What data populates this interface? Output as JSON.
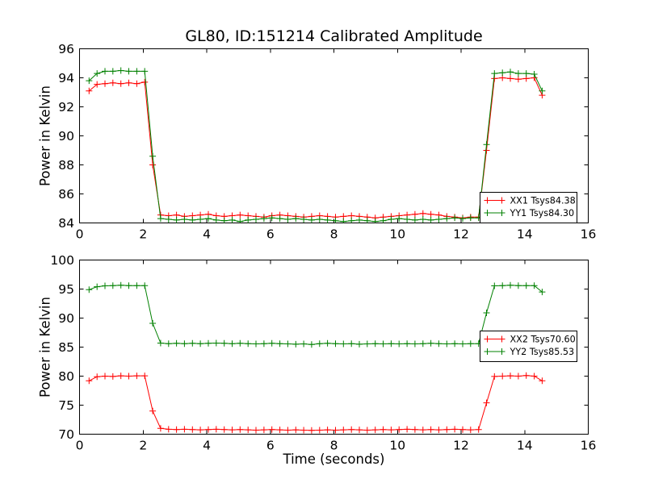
{
  "figure": {
    "title": "GL80, ID:151214 Calibrated Amplitude",
    "background_color": "#ffffff",
    "axis_color": "#000000"
  },
  "chart_data": [
    {
      "type": "line",
      "title": "GL80, ID:151214 Calibrated Amplitude",
      "xlabel": "",
      "ylabel": "Power in Kelvin",
      "xlim": [
        0,
        16
      ],
      "ylim": [
        84,
        96
      ],
      "xticks": [
        0,
        2,
        4,
        6,
        8,
        10,
        12,
        14,
        16
      ],
      "yticks": [
        84,
        86,
        88,
        90,
        92,
        94,
        96
      ],
      "grid": false,
      "legend_position": "lower right",
      "marker": "plus",
      "x": [
        0.3,
        0.55,
        0.8,
        1.05,
        1.3,
        1.55,
        1.8,
        2.05,
        2.3,
        2.55,
        2.8,
        3.05,
        3.3,
        3.55,
        3.8,
        4.05,
        4.3,
        4.55,
        4.8,
        5.05,
        5.3,
        5.55,
        5.8,
        6.05,
        6.3,
        6.55,
        6.8,
        7.05,
        7.3,
        7.55,
        7.8,
        8.05,
        8.3,
        8.55,
        8.8,
        9.05,
        9.3,
        9.55,
        9.8,
        10.05,
        10.3,
        10.55,
        10.8,
        11.05,
        11.3,
        11.55,
        11.8,
        12.05,
        12.3,
        12.55,
        12.8,
        13.05,
        13.3,
        13.55,
        13.8,
        14.05,
        14.3,
        14.55
      ],
      "series": [
        {
          "id": "xx1",
          "name": "XX1 Tsys84.38",
          "color": "#ff0000",
          "values": [
            93.1,
            93.55,
            93.6,
            93.65,
            93.6,
            93.65,
            93.6,
            93.7,
            88.0,
            84.55,
            84.5,
            84.55,
            84.45,
            84.5,
            84.55,
            84.6,
            84.5,
            84.45,
            84.5,
            84.55,
            84.5,
            84.45,
            84.4,
            84.5,
            84.55,
            84.5,
            84.45,
            84.4,
            84.45,
            84.5,
            84.45,
            84.4,
            84.45,
            84.5,
            84.45,
            84.4,
            84.35,
            84.4,
            84.45,
            84.5,
            84.55,
            84.6,
            84.65,
            84.6,
            84.55,
            84.45,
            84.4,
            84.35,
            84.4,
            84.4,
            89.0,
            93.95,
            94.0,
            93.95,
            93.9,
            93.95,
            94.0,
            92.8
          ]
        },
        {
          "id": "yy1",
          "name": "YY1 Tsys84.30",
          "color": "#008000",
          "values": [
            93.8,
            94.3,
            94.45,
            94.45,
            94.5,
            94.45,
            94.45,
            94.45,
            88.6,
            84.3,
            84.25,
            84.2,
            84.25,
            84.2,
            84.25,
            84.3,
            84.2,
            84.15,
            84.2,
            84.1,
            84.2,
            84.25,
            84.3,
            84.35,
            84.3,
            84.25,
            84.3,
            84.25,
            84.2,
            84.25,
            84.2,
            84.15,
            84.1,
            84.15,
            84.2,
            84.15,
            84.1,
            84.15,
            84.25,
            84.3,
            84.25,
            84.2,
            84.25,
            84.2,
            84.25,
            84.3,
            84.35,
            84.3,
            84.35,
            84.35,
            89.4,
            94.3,
            94.35,
            94.4,
            94.3,
            94.3,
            94.25,
            93.1
          ]
        }
      ]
    },
    {
      "type": "line",
      "title": "",
      "xlabel": "Time (seconds)",
      "ylabel": "Power in Kelvin",
      "xlim": [
        0,
        16
      ],
      "ylim": [
        70,
        100
      ],
      "xticks": [
        0,
        2,
        4,
        6,
        8,
        10,
        12,
        14,
        16
      ],
      "yticks": [
        70,
        75,
        80,
        85,
        90,
        95,
        100
      ],
      "grid": false,
      "legend_position": "center right",
      "marker": "plus",
      "x": [
        0.3,
        0.55,
        0.8,
        1.05,
        1.3,
        1.55,
        1.8,
        2.05,
        2.3,
        2.55,
        2.8,
        3.05,
        3.3,
        3.55,
        3.8,
        4.05,
        4.3,
        4.55,
        4.8,
        5.05,
        5.3,
        5.55,
        5.8,
        6.05,
        6.3,
        6.55,
        6.8,
        7.05,
        7.3,
        7.55,
        7.8,
        8.05,
        8.3,
        8.55,
        8.8,
        9.05,
        9.3,
        9.55,
        9.8,
        10.05,
        10.3,
        10.55,
        10.8,
        11.05,
        11.3,
        11.55,
        11.8,
        12.05,
        12.3,
        12.55,
        12.8,
        13.05,
        13.3,
        13.55,
        13.8,
        14.05,
        14.3,
        14.55
      ],
      "series": [
        {
          "id": "xx2",
          "name": "XX2 Tsys70.60",
          "color": "#ff0000",
          "values": [
            79.2,
            79.9,
            80.0,
            79.95,
            80.05,
            80.0,
            80.05,
            80.05,
            74.0,
            71.0,
            70.85,
            70.8,
            70.85,
            70.8,
            70.75,
            70.8,
            70.85,
            70.8,
            70.75,
            70.8,
            70.75,
            70.7,
            70.75,
            70.8,
            70.75,
            70.7,
            70.75,
            70.7,
            70.65,
            70.7,
            70.75,
            70.7,
            70.75,
            70.8,
            70.75,
            70.7,
            70.75,
            70.8,
            70.75,
            70.8,
            70.85,
            70.8,
            70.75,
            70.8,
            70.75,
            70.8,
            70.85,
            70.8,
            70.75,
            70.8,
            75.4,
            79.95,
            80.0,
            80.05,
            80.0,
            80.1,
            80.0,
            79.2
          ]
        },
        {
          "id": "yy2",
          "name": "YY2 Tsys85.53",
          "color": "#008000",
          "values": [
            94.9,
            95.4,
            95.55,
            95.6,
            95.65,
            95.6,
            95.6,
            95.6,
            89.1,
            85.7,
            85.6,
            85.65,
            85.6,
            85.65,
            85.6,
            85.65,
            85.7,
            85.65,
            85.6,
            85.65,
            85.6,
            85.55,
            85.6,
            85.65,
            85.6,
            85.55,
            85.5,
            85.55,
            85.45,
            85.6,
            85.65,
            85.6,
            85.55,
            85.6,
            85.5,
            85.55,
            85.6,
            85.55,
            85.6,
            85.55,
            85.6,
            85.55,
            85.6,
            85.65,
            85.6,
            85.55,
            85.6,
            85.55,
            85.6,
            85.6,
            90.9,
            95.55,
            95.6,
            95.65,
            95.6,
            95.6,
            95.6,
            94.5
          ]
        }
      ]
    }
  ]
}
